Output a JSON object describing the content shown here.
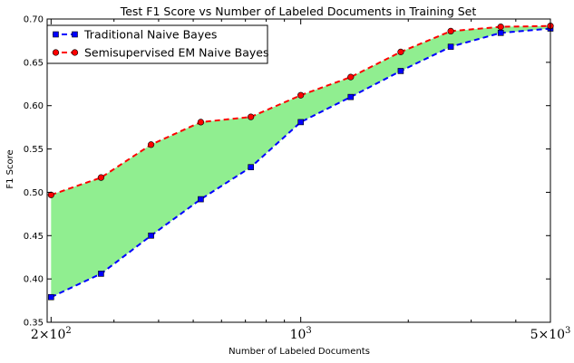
{
  "chart_data": {
    "type": "line",
    "title": "Test F1 Score vs Number of Labeled Documents in Training Set",
    "xlabel": "Number of Labeled Documents",
    "ylabel": "F1 Score",
    "xscale": "log",
    "xlim": [
      195,
      5000
    ],
    "ylim": [
      0.35,
      0.7
    ],
    "yticks": [
      0.35,
      0.4,
      0.45,
      0.5,
      0.55,
      0.6,
      0.65,
      0.7
    ],
    "ytick_labels": [
      "0.35",
      "0.40",
      "0.45",
      "0.50",
      "0.55",
      "0.60",
      "0.65",
      "0.70"
    ],
    "xticks": [
      {
        "value": 200,
        "base": "2×10",
        "exp": "2"
      },
      {
        "value": 1000,
        "base": "10",
        "exp": "3"
      },
      {
        "value": 5000,
        "base": "5×10",
        "exp": "3"
      }
    ],
    "x": [
      200,
      276,
      381,
      525,
      725,
      1000,
      1380,
      1905,
      2630,
      3630,
      5000
    ],
    "grid": false,
    "legend_position": "top-left",
    "fill_between": {
      "series": [
        0,
        1
      ],
      "color": "#90ee90"
    },
    "series": [
      {
        "name": "Traditional Naive Bayes",
        "values": [
          0.379,
          0.406,
          0.45,
          0.492,
          0.529,
          0.581,
          0.61,
          0.64,
          0.668,
          0.684,
          0.689
        ],
        "color": "#0000ff",
        "marker": "square",
        "linestyle": "dashed"
      },
      {
        "name": "Semisupervised EM Naive Bayes",
        "values": [
          0.497,
          0.517,
          0.555,
          0.581,
          0.587,
          0.612,
          0.633,
          0.662,
          0.686,
          0.691,
          0.692
        ],
        "color": "#ff0000",
        "marker": "circle",
        "linestyle": "dashed"
      }
    ]
  }
}
